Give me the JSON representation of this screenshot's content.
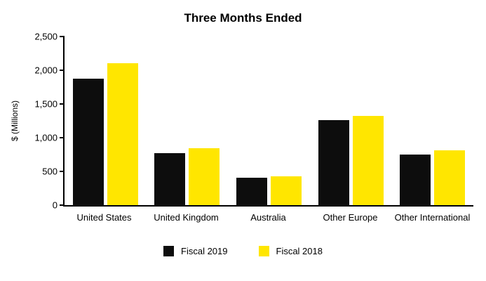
{
  "title": "Three Months Ended",
  "chart_data": {
    "type": "bar",
    "title": "Three Months Ended",
    "categories": [
      "United States",
      "United Kingdom",
      "Australia",
      "Other Europe",
      "Other International"
    ],
    "series": [
      {
        "name": "Fiscal 2019",
        "color": "#0d0d0d",
        "values": [
          1870,
          770,
          405,
          1260,
          750
        ]
      },
      {
        "name": "Fiscal 2018",
        "color": "#ffe600",
        "values": [
          2100,
          845,
          425,
          1325,
          810
        ]
      }
    ],
    "xlabel": "",
    "ylabel": "$ (Millions)",
    "ylim": [
      0,
      2500
    ],
    "yticks": [
      0,
      500,
      1000,
      1500,
      2000,
      2500
    ],
    "ytick_labels": [
      "0",
      "500",
      "1,000",
      "1,500",
      "2,000",
      "2,500"
    ],
    "grid": false,
    "legend_position": "bottom"
  }
}
